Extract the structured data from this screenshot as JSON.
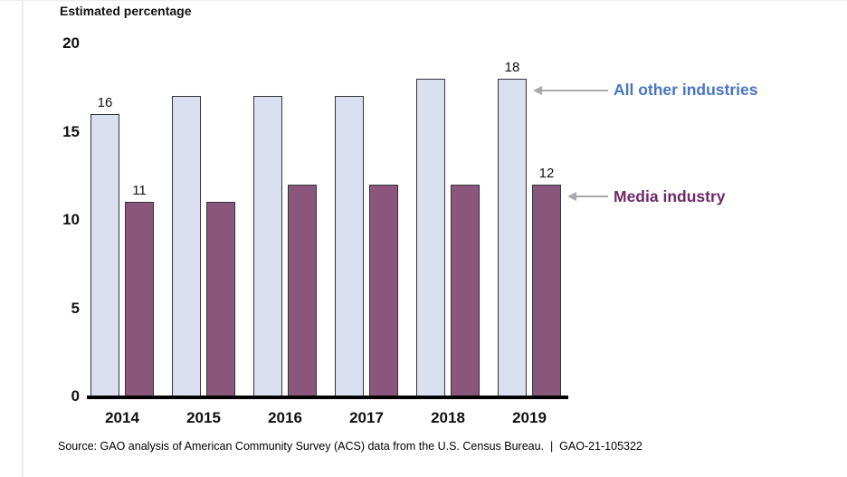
{
  "chart_data": {
    "type": "bar",
    "title": "Estimated percentage",
    "categories": [
      "2014",
      "2015",
      "2016",
      "2017",
      "2018",
      "2019"
    ],
    "series": [
      {
        "name": "All other industries",
        "values": [
          16,
          17,
          17,
          17,
          18,
          18
        ],
        "fill_color": "#dbe0f0",
        "label_text_color": "#4a75be",
        "labeled_categories": [
          "2014",
          "2019"
        ]
      },
      {
        "name": "Media industry",
        "values": [
          11,
          11,
          12,
          12,
          12,
          12
        ],
        "fill_color": "#8b567c",
        "label_text_color": "#6e2a69",
        "labeled_categories": [
          "2014",
          "2019"
        ]
      }
    ],
    "ylim": [
      0,
      20
    ],
    "yticks": [
      0,
      5,
      10,
      15,
      20
    ],
    "xlabel": "",
    "ylabel": "",
    "grid": false,
    "legend_position": "right-side text annotations with gray arrows pointing at 2019 bars"
  },
  "colors": {
    "bar_border": "#33333c",
    "axis_line": "#000000",
    "arrow": "#a9a9a9"
  },
  "source_note": "Source: GAO analysis of American Community Survey (ACS) data from the U.S. Census Bureau.  |  GAO-21-105322"
}
